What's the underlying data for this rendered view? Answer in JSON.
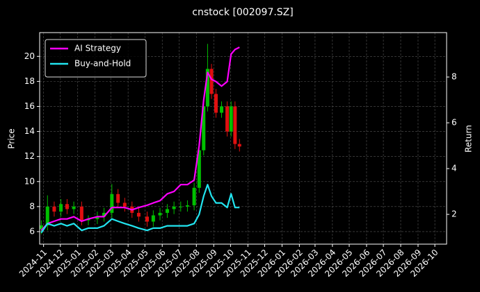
{
  "chart_data": {
    "type": "candlestick_line",
    "title": "cnstock [002097.SZ]",
    "ylabel": "Price",
    "y2label": "Return",
    "x": [
      "2024-10-28",
      "2024-11-08",
      "2024-11-20",
      "2024-12-02",
      "2024-12-13",
      "2024-12-25",
      "2025-01-08",
      "2025-01-20",
      "2025-02-05",
      "2025-02-17",
      "2025-03-03",
      "2025-03-14",
      "2025-03-26",
      "2025-04-08",
      "2025-04-20",
      "2025-05-05",
      "2025-05-16",
      "2025-05-28",
      "2025-06-10",
      "2025-06-22",
      "2025-07-04",
      "2025-07-16",
      "2025-07-28",
      "2025-08-06",
      "2025-08-14",
      "2025-08-21",
      "2025-08-28",
      "2025-09-05",
      "2025-09-15",
      "2025-09-25",
      "2025-10-02",
      "2025-10-09",
      "2025-10-17"
    ],
    "open": [
      6.2,
      6.5,
      8.0,
      7.6,
      8.2,
      7.8,
      8.0,
      6.9,
      7.0,
      7.2,
      7.5,
      9.0,
      8.3,
      8.0,
      7.5,
      7.2,
      6.8,
      7.3,
      7.5,
      7.8,
      8.0,
      8.0,
      8.1,
      9.5,
      12.5,
      16.0,
      19.0,
      17.0,
      15.5,
      16.0,
      14.0,
      16.0,
      13.0
    ],
    "high": [
      6.9,
      8.9,
      8.4,
      8.6,
      8.6,
      8.4,
      8.4,
      7.3,
      7.6,
      7.9,
      9.8,
      9.4,
      8.7,
      8.4,
      7.9,
      7.6,
      7.7,
      7.9,
      8.2,
      8.4,
      8.4,
      8.5,
      9.9,
      12.9,
      16.4,
      21.0,
      19.4,
      17.4,
      16.4,
      16.4,
      16.4,
      16.4,
      13.4
    ],
    "low": [
      5.8,
      6.1,
      7.2,
      7.2,
      7.4,
      7.4,
      6.5,
      6.5,
      6.6,
      6.8,
      7.1,
      7.9,
      7.6,
      7.1,
      6.8,
      6.4,
      6.4,
      6.9,
      7.1,
      7.4,
      7.6,
      7.6,
      7.7,
      9.1,
      12.1,
      15.6,
      16.6,
      15.1,
      15.1,
      13.6,
      13.6,
      12.6,
      12.4
    ],
    "close": [
      6.5,
      8.0,
      7.6,
      8.2,
      7.8,
      8.0,
      6.9,
      7.0,
      7.2,
      7.5,
      9.0,
      8.3,
      8.0,
      7.5,
      7.2,
      6.8,
      7.3,
      7.5,
      7.8,
      8.0,
      8.0,
      8.1,
      9.5,
      12.5,
      16.0,
      19.0,
      17.0,
      15.5,
      16.0,
      14.0,
      16.0,
      13.0,
      12.8
    ],
    "up_color": "#00c000",
    "down_color": "#e01010",
    "series": [
      {
        "name": "AI Strategy",
        "color": "#ff00ff",
        "axis": "y2",
        "values": [
          1.3,
          1.6,
          1.7,
          1.8,
          1.8,
          1.9,
          1.7,
          1.8,
          1.9,
          1.9,
          2.3,
          2.3,
          2.3,
          2.2,
          2.3,
          2.4,
          2.5,
          2.6,
          2.9,
          3.0,
          3.3,
          3.3,
          3.5,
          5.0,
          7.0,
          8.2,
          7.9,
          7.8,
          7.6,
          7.8,
          9.0,
          9.2,
          9.3
        ]
      },
      {
        "name": "Buy-and-Hold",
        "color": "#22e5f0",
        "axis": "y2",
        "values": [
          1.2,
          1.6,
          1.5,
          1.6,
          1.5,
          1.6,
          1.3,
          1.4,
          1.4,
          1.5,
          1.8,
          1.7,
          1.6,
          1.5,
          1.4,
          1.3,
          1.4,
          1.4,
          1.5,
          1.5,
          1.5,
          1.5,
          1.6,
          2.0,
          2.8,
          3.3,
          2.8,
          2.5,
          2.5,
          2.3,
          2.9,
          2.3,
          2.3
        ]
      }
    ],
    "xlim": [
      "2024-10-25",
      "2026-10-22"
    ],
    "xticks": [
      {
        "value": "2024-11-01",
        "label": "2024-11"
      },
      {
        "value": "2024-12-01",
        "label": "2024-12"
      },
      {
        "value": "2025-01-01",
        "label": "2025-01"
      },
      {
        "value": "2025-02-01",
        "label": "2025-02"
      },
      {
        "value": "2025-03-01",
        "label": "2025-03"
      },
      {
        "value": "2025-04-01",
        "label": "2025-04"
      },
      {
        "value": "2025-05-01",
        "label": "2025-05"
      },
      {
        "value": "2025-06-01",
        "label": "2025-06"
      },
      {
        "value": "2025-07-01",
        "label": "2025-07"
      },
      {
        "value": "2025-08-01",
        "label": "2025-08"
      },
      {
        "value": "2025-09-01",
        "label": "2025-09"
      },
      {
        "value": "2025-10-01",
        "label": "2025-10"
      },
      {
        "value": "2025-11-01",
        "label": "2025-11"
      },
      {
        "value": "2025-12-01",
        "label": "2025-12"
      },
      {
        "value": "2026-01-01",
        "label": "2026-01"
      },
      {
        "value": "2026-02-01",
        "label": "2026-02"
      },
      {
        "value": "2026-03-01",
        "label": "2026-03"
      },
      {
        "value": "2026-04-01",
        "label": "2026-04"
      },
      {
        "value": "2026-05-01",
        "label": "2026-05"
      },
      {
        "value": "2026-06-01",
        "label": "2026-06"
      },
      {
        "value": "2026-07-01",
        "label": "2026-07"
      },
      {
        "value": "2026-08-01",
        "label": "2026-08"
      },
      {
        "value": "2026-09-01",
        "label": "2026-09"
      },
      {
        "value": "2026-10-01",
        "label": "2026-10"
      }
    ],
    "ylim": [
      5.0,
      21.9
    ],
    "yticks": [
      6,
      8,
      10,
      12,
      14,
      16,
      18,
      20
    ],
    "y2lim": [
      0.7,
      9.94
    ],
    "y2ticks": [
      2,
      4,
      6,
      8
    ],
    "grid": true,
    "legend": "upper left"
  }
}
